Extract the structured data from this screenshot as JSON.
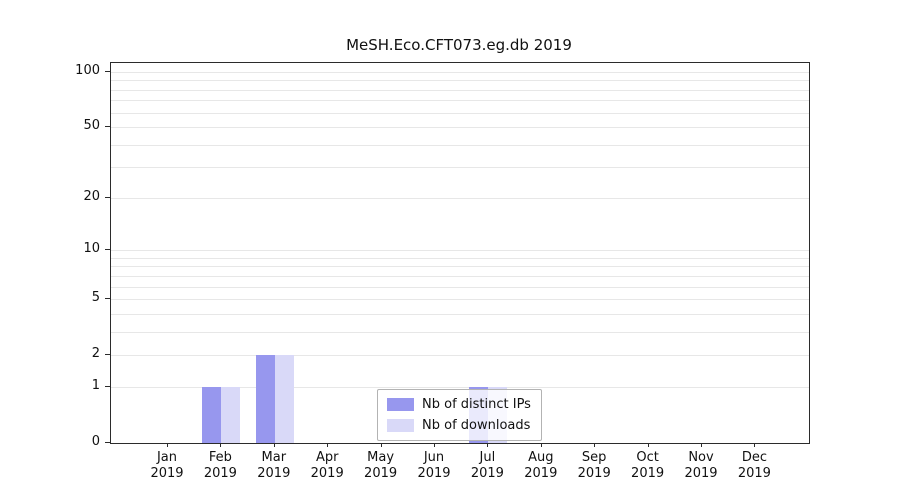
{
  "title": "MeSH.Eco.CFT073.eg.db 2019",
  "chart_data": {
    "type": "bar",
    "title": "MeSH.Eco.CFT073.eg.db 2019",
    "categories": [
      "Jan 2019",
      "Feb 2019",
      "Mar 2019",
      "Apr 2019",
      "May 2019",
      "Jun 2019",
      "Jul 2019",
      "Aug 2019",
      "Sep 2019",
      "Oct 2019",
      "Nov 2019",
      "Dec 2019"
    ],
    "x_labels": {
      "months": [
        "Jan",
        "Feb",
        "Mar",
        "Apr",
        "May",
        "Jun",
        "Jul",
        "Aug",
        "Sep",
        "Oct",
        "Nov",
        "Dec"
      ],
      "year": "2019"
    },
    "series": [
      {
        "name": "Nb of distinct IPs",
        "color": "#9797ee",
        "values": [
          0,
          1,
          2,
          0,
          0,
          0,
          1,
          0,
          0,
          0,
          0,
          0
        ]
      },
      {
        "name": "Nb of downloads",
        "color": "#d9d9f8",
        "values": [
          0,
          1,
          2,
          0,
          0,
          0,
          1,
          0,
          0,
          0,
          0,
          0
        ]
      }
    ],
    "yscale": "log1p",
    "ytick_values": [
      0,
      1,
      2,
      5,
      10,
      20,
      50,
      100
    ],
    "ytick_labels": [
      "0",
      "1",
      "2",
      "5",
      "10",
      "20",
      "50",
      "100"
    ],
    "grid_values": [
      1,
      2,
      3,
      4,
      5,
      6,
      7,
      8,
      9,
      10,
      20,
      30,
      40,
      50,
      60,
      70,
      80,
      90,
      100
    ],
    "ylim": [
      0,
      115
    ],
    "grid": "on",
    "legend_position": "lower-center-inside",
    "xlabel": "",
    "ylabel": ""
  },
  "legend": {
    "items": [
      {
        "label": "Nb of distinct IPs"
      },
      {
        "label": "Nb of downloads"
      }
    ]
  },
  "colors": {
    "distinct_ips": "#9797ee",
    "downloads": "#d9d9f8",
    "grid": "#e7e7e7",
    "axis": "#2b2b2b"
  }
}
